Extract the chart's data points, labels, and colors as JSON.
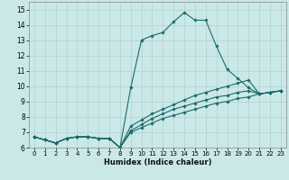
{
  "title": "",
  "xlabel": "Humidex (Indice chaleur)",
  "bg_color": "#cbe8e8",
  "grid_color": "#b0d0d0",
  "line_color": "#1a6b6b",
  "xlim": [
    -0.5,
    23.5
  ],
  "ylim": [
    6,
    15.5
  ],
  "xticks": [
    0,
    1,
    2,
    3,
    4,
    5,
    6,
    7,
    8,
    9,
    10,
    11,
    12,
    13,
    14,
    15,
    16,
    17,
    18,
    19,
    20,
    21,
    22,
    23
  ],
  "yticks": [
    6,
    7,
    8,
    9,
    10,
    11,
    12,
    13,
    14,
    15
  ],
  "lines": [
    {
      "x": [
        0,
        1,
        2,
        3,
        4,
        5,
        6,
        7,
        8,
        9,
        10,
        11,
        12,
        13,
        14,
        15,
        16,
        17,
        18,
        19,
        20,
        21,
        22,
        23
      ],
      "y": [
        6.7,
        6.5,
        6.3,
        6.6,
        6.7,
        6.7,
        6.6,
        6.6,
        6.0,
        9.9,
        13.0,
        13.3,
        13.5,
        14.2,
        14.8,
        14.3,
        14.3,
        12.6,
        11.1,
        10.5,
        9.9,
        9.5,
        9.6,
        9.7
      ]
    },
    {
      "x": [
        0,
        1,
        2,
        3,
        4,
        5,
        6,
        7,
        8,
        9,
        10,
        11,
        12,
        13,
        14,
        15,
        16,
        17,
        18,
        19,
        20,
        21,
        22,
        23
      ],
      "y": [
        6.7,
        6.5,
        6.3,
        6.6,
        6.7,
        6.7,
        6.6,
        6.6,
        6.0,
        7.4,
        7.8,
        8.2,
        8.5,
        8.8,
        9.1,
        9.4,
        9.6,
        9.8,
        10.0,
        10.2,
        10.4,
        9.5,
        9.6,
        9.7
      ]
    },
    {
      "x": [
        0,
        1,
        2,
        3,
        4,
        5,
        6,
        7,
        8,
        9,
        10,
        11,
        12,
        13,
        14,
        15,
        16,
        17,
        18,
        19,
        20,
        21,
        22,
        23
      ],
      "y": [
        6.7,
        6.5,
        6.3,
        6.6,
        6.7,
        6.7,
        6.6,
        6.6,
        6.0,
        7.1,
        7.5,
        7.9,
        8.2,
        8.5,
        8.7,
        8.9,
        9.1,
        9.3,
        9.4,
        9.6,
        9.7,
        9.5,
        9.6,
        9.7
      ]
    },
    {
      "x": [
        0,
        1,
        2,
        3,
        4,
        5,
        6,
        7,
        8,
        9,
        10,
        11,
        12,
        13,
        14,
        15,
        16,
        17,
        18,
        19,
        20,
        21,
        22,
        23
      ],
      "y": [
        6.7,
        6.5,
        6.3,
        6.6,
        6.7,
        6.7,
        6.6,
        6.6,
        6.0,
        7.0,
        7.3,
        7.6,
        7.9,
        8.1,
        8.3,
        8.5,
        8.7,
        8.9,
        9.0,
        9.2,
        9.3,
        9.5,
        9.6,
        9.7
      ]
    }
  ]
}
